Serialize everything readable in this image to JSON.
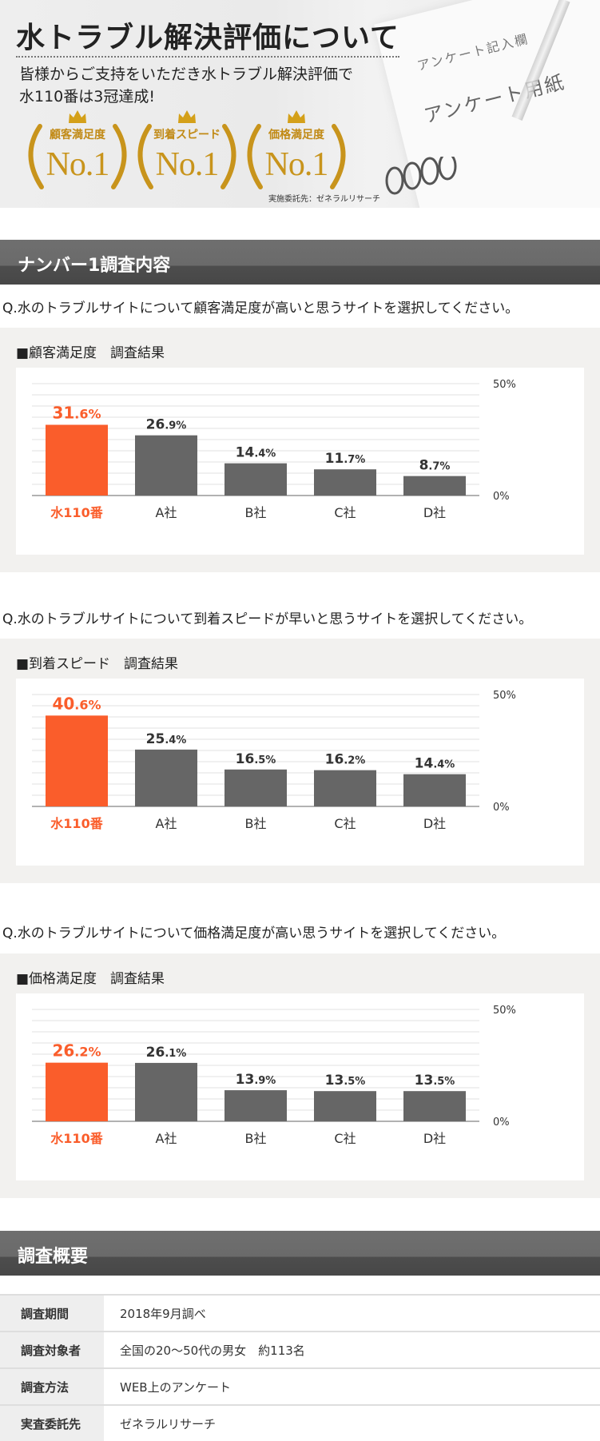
{
  "hero": {
    "title": "水トラブル解決評価について",
    "line1": "皆様からご支持をいただき水トラブル解決評価で",
    "line2": "水110番は3冠達成!",
    "awards": [
      {
        "label": "顧客満足度",
        "rank": "No.1"
      },
      {
        "label": "到着スピード",
        "rank": "No.1"
      },
      {
        "label": "価格満足度",
        "rank": "No.1"
      }
    ],
    "credit": "実施委託先：ゼネラルリサーチ",
    "paper_text1": "アンケート記入欄",
    "paper_text2": "アンケート用紙"
  },
  "section1": {
    "title": "ナンバー1調査内容"
  },
  "surveys": [
    {
      "question": "Q.水のトラブルサイトについて顧客満足度が高いと思うサイトを選択してください。",
      "title": "■顧客満足度　調査結果",
      "chart_data": {
        "type": "bar",
        "categories": [
          "水110番",
          "A社",
          "B社",
          "C社",
          "D社"
        ],
        "values": [
          31.6,
          26.9,
          14.4,
          11.7,
          8.7
        ],
        "ylim": [
          0,
          50
        ],
        "yticks": [
          "50%",
          "0%"
        ],
        "unit": "%",
        "highlight_color": "#fa5d2b",
        "bar_color": "#666666"
      }
    },
    {
      "question": "Q.水のトラブルサイトについて到着スピードが早いと思うサイトを選択してください。",
      "title": "■到着スピード　調査結果",
      "chart_data": {
        "type": "bar",
        "categories": [
          "水110番",
          "A社",
          "B社",
          "C社",
          "D社"
        ],
        "values": [
          40.6,
          25.4,
          16.5,
          16.2,
          14.4
        ],
        "ylim": [
          0,
          50
        ],
        "yticks": [
          "50%",
          "0%"
        ],
        "unit": "%",
        "highlight_color": "#fa5d2b",
        "bar_color": "#666666"
      }
    },
    {
      "question": "Q.水のトラブルサイトについて価格満足度が高い思うサイトを選択してください。",
      "title": "■価格満足度　調査結果",
      "chart_data": {
        "type": "bar",
        "categories": [
          "水110番",
          "A社",
          "B社",
          "C社",
          "D社"
        ],
        "values": [
          26.2,
          26.1,
          13.9,
          13.5,
          13.5
        ],
        "ylim": [
          0,
          50
        ],
        "yticks": [
          "50%",
          "0%"
        ],
        "unit": "%",
        "highlight_color": "#fa5d2b",
        "bar_color": "#666666"
      }
    }
  ],
  "section2": {
    "title": "調査概要"
  },
  "summary": [
    {
      "key": "調査期間",
      "value": "2018年9月調べ"
    },
    {
      "key": "調査対象者",
      "value": "全国の20～50代の男女　約113名"
    },
    {
      "key": "調査方法",
      "value": "WEB上のアンケート"
    },
    {
      "key": "実査委託先",
      "value": "ゼネラルリサーチ"
    }
  ]
}
